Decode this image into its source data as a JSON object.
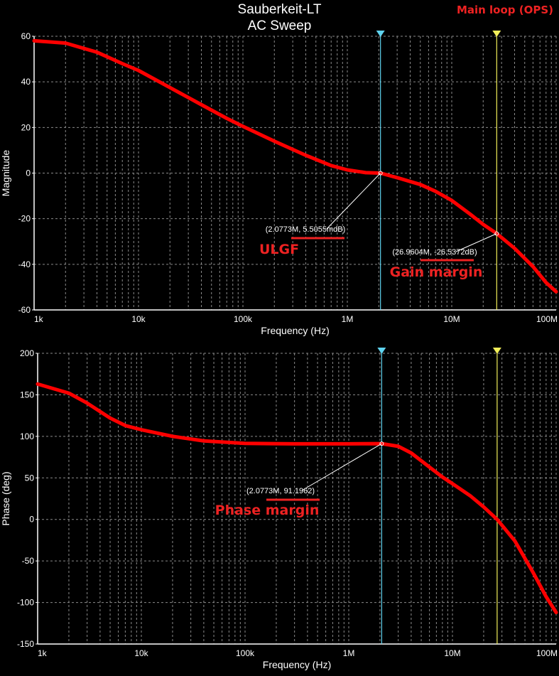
{
  "header": {
    "title_line1": "Sauberkeit-LT",
    "title_line2": "AC Sweep",
    "corner_label": "Main loop (OPS)"
  },
  "colors": {
    "background": "#000000",
    "trace": "#ff0000",
    "grid": "#8a8a8a",
    "axis": "#ffffff",
    "cursor1": "#5fd3ef",
    "cursor2": "#f2ef5a",
    "annotation_red": "#ee2222"
  },
  "chart_data": [
    {
      "id": "magnitude",
      "type": "line",
      "xscale": "log",
      "xlabel": "Frequency (Hz)",
      "ylabel": "Magnitude",
      "xlim": [
        1000,
        100000000
      ],
      "ylim": [
        -60,
        60
      ],
      "x_ticks": [
        1000,
        10000,
        100000,
        1000000,
        10000000,
        100000000
      ],
      "x_tick_labels": [
        "1k",
        "10k",
        "100k",
        "1M",
        "10M",
        "100M"
      ],
      "y_ticks": [
        60,
        40,
        20,
        0,
        -20,
        -40,
        -60
      ],
      "y_tick_labels": [
        "60",
        "40",
        "20",
        "0",
        "-20",
        "-40",
        "-60"
      ],
      "grid": true,
      "series": [
        {
          "x": [
            1000,
            2000,
            4000,
            7000,
            10000,
            20000,
            40000,
            70000,
            100000,
            200000,
            400000,
            700000,
            1000000,
            1500000,
            2077300,
            3000000,
            5000000,
            7000000,
            10000000,
            15000000,
            20000000,
            26960400,
            40000000,
            60000000,
            80000000,
            100000000
          ],
          "y": [
            58,
            57,
            53,
            48,
            45,
            37.5,
            30,
            24,
            20.5,
            14,
            7.8,
            3.3,
            1.4,
            0.2,
            0.0055,
            -2,
            -5,
            -8,
            -12,
            -18,
            -22.5,
            -26.5,
            -33,
            -41,
            -48,
            -52
          ]
        }
      ],
      "cursors": [
        {
          "name": "cursor1",
          "x": 2077300,
          "y": 0.0055
        },
        {
          "name": "cursor2",
          "x": 26960400,
          "y": -26.5372
        }
      ],
      "annotations": [
        {
          "readout": "(2.0773M, 5.5055mdB)",
          "caption": "ULGF",
          "x": 2077300,
          "y": 0.0055
        },
        {
          "readout": "(26.9604M, -26.5372dB)",
          "caption": "Gain margin",
          "x": 26960400,
          "y": -26.5372
        }
      ]
    },
    {
      "id": "phase",
      "type": "line",
      "xscale": "log",
      "xlabel": "Frequency (Hz)",
      "ylabel": "Phase (deg)",
      "xlim": [
        1000,
        100000000
      ],
      "ylim": [
        -150,
        200
      ],
      "x_ticks": [
        1000,
        10000,
        100000,
        1000000,
        10000000,
        100000000
      ],
      "x_tick_labels": [
        "1k",
        "10k",
        "100k",
        "1M",
        "10M",
        "100M"
      ],
      "y_ticks": [
        200,
        150,
        100,
        50,
        0,
        -50,
        -100,
        -150
      ],
      "y_tick_labels": [
        "200",
        "150",
        "100",
        "50",
        "0",
        "-50",
        "-100",
        "-150"
      ],
      "grid": true,
      "series": [
        {
          "x": [
            1000,
            2000,
            3000,
            5000,
            7000,
            10000,
            20000,
            40000,
            100000,
            300000,
            1000000,
            2077300,
            3000000,
            4000000,
            6000000,
            8000000,
            10000000,
            15000000,
            20000000,
            26960400,
            40000000,
            60000000,
            80000000,
            100000000
          ],
          "y": [
            163,
            152,
            140,
            122,
            113,
            108,
            100,
            94.5,
            91.5,
            91,
            91,
            91.2,
            88,
            80,
            63,
            51,
            43,
            28,
            15,
            0,
            -26,
            -64,
            -93,
            -112
          ]
        }
      ],
      "cursors": [
        {
          "name": "cursor1",
          "x": 2077300,
          "y": 91.1962
        },
        {
          "name": "cursor2",
          "x": 26960400,
          "y": 0
        }
      ],
      "annotations": [
        {
          "readout": "(2.0773M, 91.1962)",
          "caption": "Phase margin",
          "x": 2077300,
          "y": 91.1962
        }
      ]
    }
  ]
}
